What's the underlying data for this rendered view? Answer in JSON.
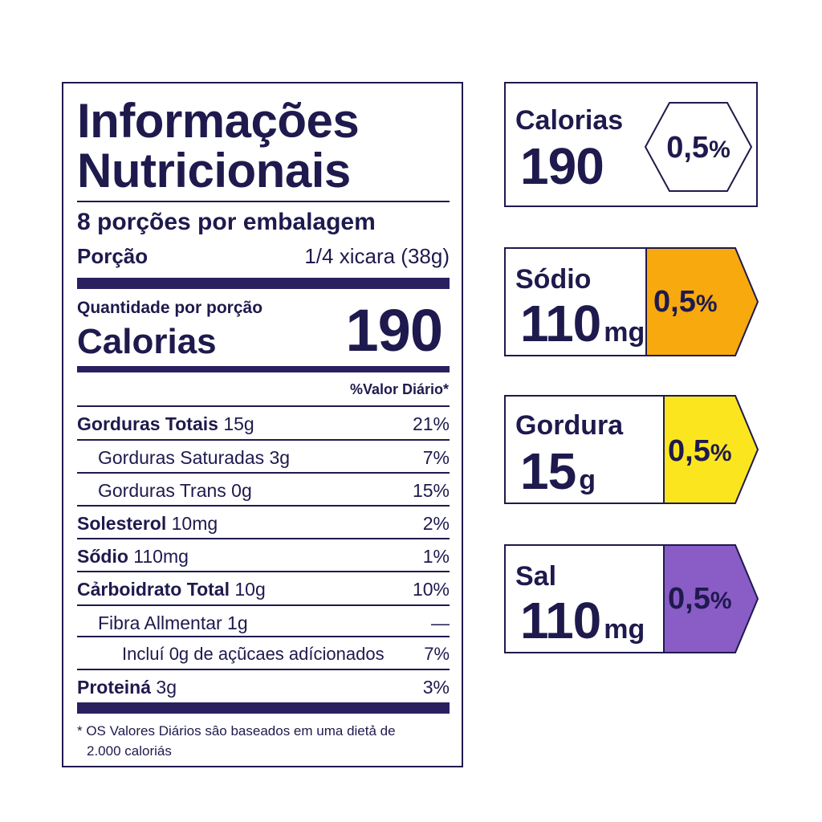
{
  "label": {
    "title_line1": "Informações",
    "title_line2": "Nutricionais",
    "servings": "8 porções por embalagem",
    "portion_label": "Porção",
    "portion_value": "1/4 xicara (38g)",
    "quantity_label": "Quantidade por porção",
    "calories_label": "Calorias",
    "calories_value": "190",
    "dv_header": "%Valor Diário*",
    "rows": [
      {
        "bold": "Gorduras Totais",
        "amount": " 15g",
        "dv": "21%"
      },
      {
        "bold": "",
        "amount": "Gorduras Saturadas 3g",
        "dv": "7%"
      },
      {
        "bold": "",
        "amount": "Gorduras Trans 0g",
        "dv": "15%"
      },
      {
        "bold": "Solesterol",
        "amount": " 10mg",
        "dv": "2%"
      },
      {
        "bold": "Sődio",
        "amount": " 110mg",
        "dv": "1%"
      },
      {
        "bold": "Cảrboidrato Total",
        "amount": " 10g",
        "dv": "10%"
      },
      {
        "bold": "",
        "amount": "Fibra Allmentar 1g",
        "dv": "—"
      },
      {
        "bold": "",
        "amount": "Incluí 0g de açũcaes adícionados",
        "dv": "7%"
      },
      {
        "bold": "Proteiná",
        "amount": " 3g",
        "dv": "3%"
      }
    ],
    "footnote_line1": "* OS Valores Diários sâo baseados em uma dietả de",
    "footnote_line2": "2.000 caloriás"
  },
  "badges": [
    {
      "name": "Calorias",
      "value": "190",
      "unit": "",
      "pct": "0,5",
      "pct_sign": "%",
      "color": "#ffffff"
    },
    {
      "name": "Sódio",
      "value": "110",
      "unit": "mg",
      "pct": "0,5",
      "pct_sign": "%",
      "color": "#f7a90d"
    },
    {
      "name": "Gordura",
      "value": "15",
      "unit": "g",
      "pct": "0,5",
      "pct_sign": "%",
      "color": "#fbe51f"
    },
    {
      "name": "Sal",
      "value": "110",
      "unit": "mg",
      "pct": "0,5",
      "pct_sign": "%",
      "color": "#8a5cc6"
    }
  ],
  "colors": {
    "ink": "#1e1a4d",
    "rule": "#2a2060"
  }
}
